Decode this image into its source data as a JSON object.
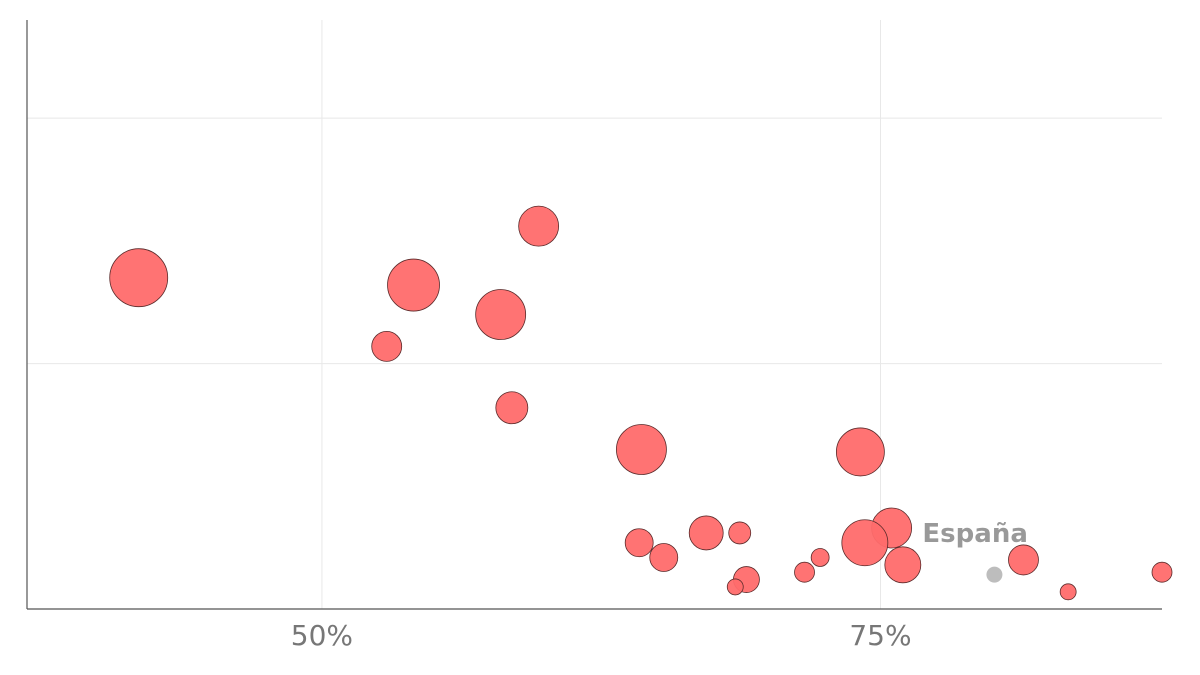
{
  "chart_data": {
    "type": "bubble",
    "xlim": [
      36.8,
      87.6
    ],
    "xticks": [
      {
        "value": 50,
        "label": "50%"
      },
      {
        "value": 75,
        "label": "75%"
      }
    ],
    "ylim": [
      0,
      2.4
    ],
    "yticks": [
      0,
      1,
      2
    ],
    "show_ytick_labels": false,
    "grid": true,
    "series": [
      {
        "color": "#ff6b6b",
        "x": [
          41.8,
          54.1,
          59.7,
          58.0,
          52.9,
          58.5,
          64.3,
          74.1,
          75.5,
          74.3,
          67.2,
          64.2,
          65.3,
          68.7,
          76.0,
          81.4,
          69.0,
          72.3,
          71.6,
          68.5,
          83.4,
          87.6
        ],
        "values": [
          1.35,
          1.32,
          1.56,
          1.2,
          1.07,
          0.82,
          0.65,
          0.64,
          0.33,
          0.27,
          0.31,
          0.27,
          0.21,
          0.31,
          0.18,
          0.2,
          0.12,
          0.21,
          0.15,
          0.09,
          0.07,
          0.15
        ],
        "sizes": [
          29,
          26,
          20,
          25,
          15,
          16,
          25,
          24,
          20,
          23,
          17,
          14,
          14,
          11,
          18,
          15,
          13,
          9,
          10,
          8,
          8,
          10
        ]
      }
    ],
    "highlight": {
      "label": "España",
      "x": 80.1,
      "y": 0.14,
      "size": 8,
      "color": "#bdbdbd"
    }
  }
}
